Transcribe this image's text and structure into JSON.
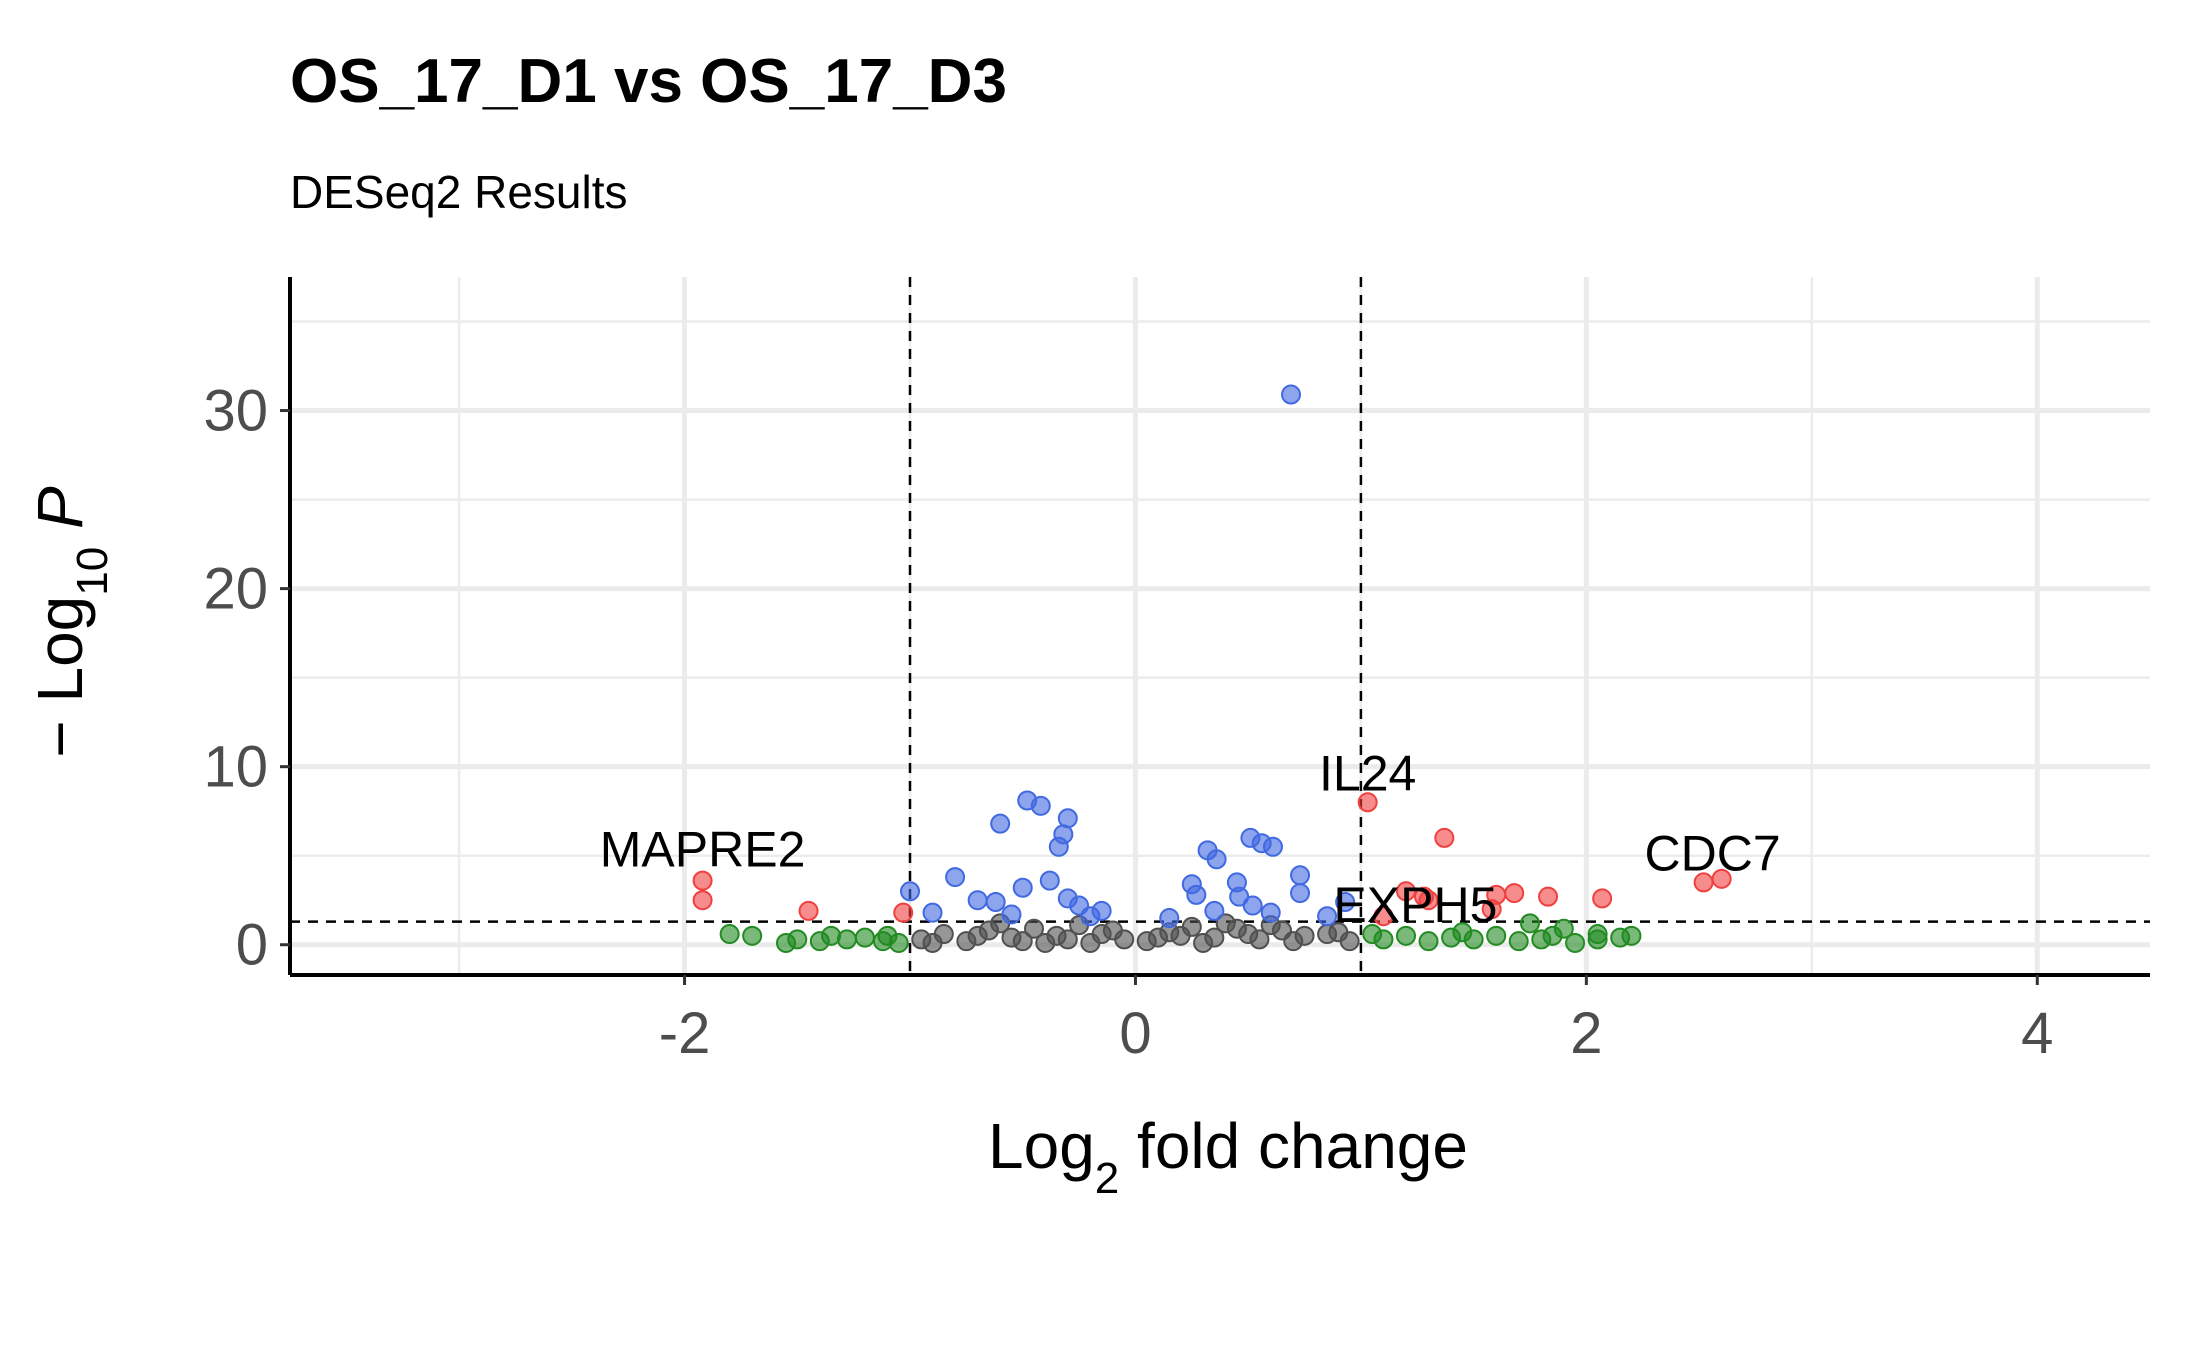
{
  "chart_data": {
    "type": "scatter",
    "title": "OS_17_D1 vs OS_17_D3",
    "subtitle": "DESeq2 Results",
    "xlabel": "Log2 fold change",
    "ylabel": "-Log10 P",
    "xlim": [
      -3.75,
      4.5
    ],
    "ylim": [
      -1.7,
      37.5
    ],
    "x_ticks": [
      -2,
      0,
      2,
      4
    ],
    "y_ticks": [
      0,
      10,
      20,
      30
    ],
    "grid": true,
    "legend": "none",
    "thresholds": {
      "log2fc": [
        -1,
        1
      ],
      "neg_log10_p": 1.3
    },
    "colors": {
      "ns": "#505050",
      "log2fc": "#228b22",
      "p": "#4169e1",
      "p_and_log2fc": "#f04040"
    },
    "series": [
      {
        "category": "p_and_log2fc",
        "points": [
          [
            -1.92,
            3.6
          ],
          [
            -1.92,
            2.5
          ],
          [
            -1.45,
            1.9
          ],
          [
            -1.03,
            1.8
          ],
          [
            1.03,
            8.0
          ],
          [
            1.37,
            6.0
          ],
          [
            1.6,
            2.8
          ],
          [
            1.68,
            2.9
          ],
          [
            1.83,
            2.7
          ],
          [
            2.07,
            2.6
          ],
          [
            2.52,
            3.5
          ],
          [
            2.6,
            3.7
          ],
          [
            1.2,
            3.0
          ],
          [
            1.28,
            2.7
          ],
          [
            1.58,
            2.0
          ],
          [
            1.1,
            1.6
          ],
          [
            1.3,
            2.5
          ]
        ]
      },
      {
        "category": "p",
        "points": [
          [
            0.69,
            30.9
          ],
          [
            -0.48,
            8.1
          ],
          [
            -0.42,
            7.8
          ],
          [
            -0.3,
            7.1
          ],
          [
            -0.6,
            6.8
          ],
          [
            -0.32,
            6.2
          ],
          [
            -0.34,
            5.5
          ],
          [
            0.51,
            6.0
          ],
          [
            0.56,
            5.7
          ],
          [
            0.61,
            5.5
          ],
          [
            0.32,
            5.3
          ],
          [
            0.36,
            4.8
          ],
          [
            -0.8,
            3.8
          ],
          [
            -0.38,
            3.6
          ],
          [
            -0.5,
            3.2
          ],
          [
            -0.3,
            2.6
          ],
          [
            -0.7,
            2.5
          ],
          [
            -0.62,
            2.4
          ],
          [
            -0.25,
            2.2
          ],
          [
            0.25,
            3.4
          ],
          [
            0.45,
            3.5
          ],
          [
            0.73,
            3.9
          ],
          [
            0.46,
            2.7
          ],
          [
            0.73,
            2.9
          ],
          [
            -1.0,
            3.0
          ],
          [
            -0.9,
            1.8
          ],
          [
            -0.55,
            1.7
          ],
          [
            0.35,
            1.9
          ],
          [
            0.52,
            2.2
          ],
          [
            0.85,
            1.6
          ],
          [
            0.93,
            2.4
          ],
          [
            -0.2,
            1.6
          ],
          [
            0.15,
            1.5
          ],
          [
            0.6,
            1.8
          ],
          [
            0.27,
            2.8
          ],
          [
            -0.15,
            1.9
          ]
        ]
      },
      {
        "category": "log2fc",
        "points": [
          [
            -1.8,
            0.6
          ],
          [
            -1.7,
            0.5
          ],
          [
            -1.55,
            0.1
          ],
          [
            -1.5,
            0.3
          ],
          [
            -1.4,
            0.2
          ],
          [
            -1.35,
            0.5
          ],
          [
            -1.28,
            0.3
          ],
          [
            -1.2,
            0.4
          ],
          [
            -1.12,
            0.2
          ],
          [
            -1.05,
            0.1
          ],
          [
            -1.1,
            0.5
          ],
          [
            1.05,
            0.6
          ],
          [
            1.1,
            0.3
          ],
          [
            1.2,
            0.5
          ],
          [
            1.3,
            0.2
          ],
          [
            1.4,
            0.4
          ],
          [
            1.5,
            0.3
          ],
          [
            1.6,
            0.5
          ],
          [
            1.7,
            0.2
          ],
          [
            1.75,
            1.2
          ],
          [
            1.8,
            0.3
          ],
          [
            1.85,
            0.5
          ],
          [
            1.95,
            0.1
          ],
          [
            2.05,
            0.6
          ],
          [
            2.15,
            0.4
          ],
          [
            2.2,
            0.5
          ],
          [
            2.05,
            0.3
          ],
          [
            1.9,
            0.9
          ],
          [
            1.45,
            0.7
          ]
        ]
      },
      {
        "category": "ns",
        "points": [
          [
            -0.95,
            0.3
          ],
          [
            -0.85,
            0.6
          ],
          [
            -0.75,
            0.2
          ],
          [
            -0.65,
            0.8
          ],
          [
            -0.55,
            0.4
          ],
          [
            -0.45,
            0.9
          ],
          [
            -0.35,
            0.5
          ],
          [
            -0.25,
            1.1
          ],
          [
            -0.15,
            0.6
          ],
          [
            -0.05,
            0.3
          ],
          [
            0.05,
            0.2
          ],
          [
            0.15,
            0.7
          ],
          [
            0.25,
            1.0
          ],
          [
            0.35,
            0.4
          ],
          [
            0.45,
            0.9
          ],
          [
            0.55,
            0.3
          ],
          [
            0.65,
            0.8
          ],
          [
            0.75,
            0.5
          ],
          [
            0.85,
            0.6
          ],
          [
            0.95,
            0.2
          ],
          [
            -0.9,
            0.1
          ],
          [
            -0.7,
            0.5
          ],
          [
            -0.5,
            0.2
          ],
          [
            -0.3,
            0.3
          ],
          [
            -0.1,
            0.8
          ],
          [
            0.1,
            0.4
          ],
          [
            0.3,
            0.1
          ],
          [
            0.5,
            0.6
          ],
          [
            0.7,
            0.2
          ],
          [
            0.9,
            0.7
          ],
          [
            -0.6,
            1.2
          ],
          [
            0.6,
            1.1
          ],
          [
            -0.2,
            0.1
          ],
          [
            0.2,
            0.5
          ],
          [
            0.4,
            1.2
          ],
          [
            -0.4,
            0.1
          ]
        ]
      }
    ],
    "annotations": [
      {
        "text": "MAPRE2",
        "x": -1.92,
        "y": 3.6
      },
      {
        "text": "IL24",
        "x": 1.03,
        "y": 8.0
      },
      {
        "text": "EXPH5",
        "x": 1.02,
        "y": 2.5
      },
      {
        "text": "CDC7",
        "x": 2.56,
        "y": 3.6
      }
    ]
  }
}
